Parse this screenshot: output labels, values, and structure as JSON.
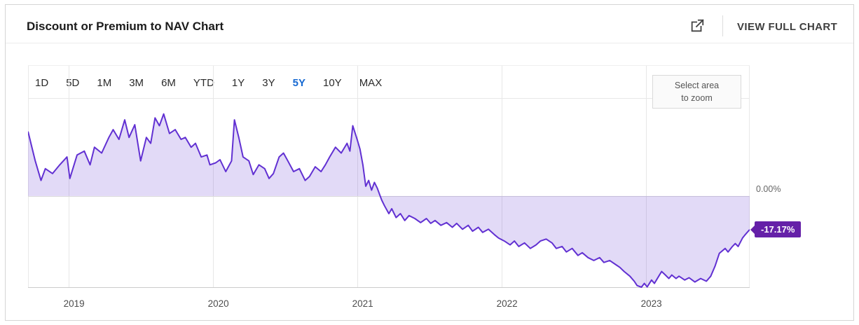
{
  "header": {
    "title": "Discount or Premium to NAV Chart",
    "view_full_chart_label": "VIEW FULL CHART",
    "external_link_icon": "open-in-new-icon"
  },
  "range_selector": {
    "options": [
      "1D",
      "5D",
      "1M",
      "3M",
      "6M",
      "YTD",
      "1Y",
      "3Y",
      "5Y",
      "10Y",
      "MAX"
    ],
    "selected": "5Y",
    "selected_color": "#1669d2"
  },
  "zoom_hint": {
    "line1": "Select area",
    "line2": "to zoom"
  },
  "chart_data": {
    "type": "area",
    "title": "Discount or Premium to NAV",
    "series_name": "Discount/Premium to NAV (%)",
    "x_unit": "decimal_year",
    "x_range": [
      2018.72,
      2023.72
    ],
    "x_ticks": [
      2019,
      2020,
      2021,
      2022,
      2023
    ],
    "ylim": [
      -47,
      67
    ],
    "baseline": 0,
    "y_zero_label": "0.00%",
    "last_value": -17.17,
    "last_value_label": "-17.17%",
    "grid": "vertical-years",
    "legend": "none",
    "line_color": "#6130d2",
    "fill_color": "rgba(97,48,210,0.18)",
    "badge_color": "#6520a8",
    "points": [
      [
        2018.72,
        33
      ],
      [
        2018.77,
        18
      ],
      [
        2018.81,
        8
      ],
      [
        2018.84,
        14
      ],
      [
        2018.89,
        11.5
      ],
      [
        2018.94,
        16
      ],
      [
        2018.99,
        20
      ],
      [
        2019.01,
        9
      ],
      [
        2019.06,
        21
      ],
      [
        2019.11,
        23
      ],
      [
        2019.15,
        16
      ],
      [
        2019.18,
        25
      ],
      [
        2019.23,
        22
      ],
      [
        2019.28,
        30
      ],
      [
        2019.31,
        34
      ],
      [
        2019.35,
        29
      ],
      [
        2019.39,
        39
      ],
      [
        2019.42,
        30
      ],
      [
        2019.46,
        36.5
      ],
      [
        2019.5,
        18
      ],
      [
        2019.54,
        30
      ],
      [
        2019.57,
        27
      ],
      [
        2019.6,
        40
      ],
      [
        2019.63,
        36
      ],
      [
        2019.66,
        42
      ],
      [
        2019.7,
        32
      ],
      [
        2019.74,
        34
      ],
      [
        2019.78,
        29
      ],
      [
        2019.81,
        30
      ],
      [
        2019.85,
        25
      ],
      [
        2019.88,
        27
      ],
      [
        2019.92,
        20
      ],
      [
        2019.96,
        21
      ],
      [
        2019.98,
        16
      ],
      [
        2020.02,
        17
      ],
      [
        2020.05,
        18.6
      ],
      [
        2020.09,
        12.5
      ],
      [
        2020.13,
        18
      ],
      [
        2020.15,
        39
      ],
      [
        2020.18,
        30
      ],
      [
        2020.21,
        20
      ],
      [
        2020.25,
        18
      ],
      [
        2020.28,
        11
      ],
      [
        2020.32,
        16
      ],
      [
        2020.36,
        14
      ],
      [
        2020.39,
        9
      ],
      [
        2020.42,
        11.5
      ],
      [
        2020.46,
        20
      ],
      [
        2020.49,
        22
      ],
      [
        2020.52,
        18
      ],
      [
        2020.56,
        12.5
      ],
      [
        2020.6,
        14
      ],
      [
        2020.64,
        8
      ],
      [
        2020.67,
        10
      ],
      [
        2020.71,
        15
      ],
      [
        2020.75,
        12.5
      ],
      [
        2020.78,
        16
      ],
      [
        2020.81,
        20
      ],
      [
        2020.85,
        25
      ],
      [
        2020.89,
        22
      ],
      [
        2020.93,
        27
      ],
      [
        2020.95,
        23
      ],
      [
        2020.97,
        36
      ],
      [
        2021.0,
        29
      ],
      [
        2021.02,
        24
      ],
      [
        2021.04,
        16
      ],
      [
        2021.06,
        5
      ],
      [
        2021.08,
        8
      ],
      [
        2021.1,
        3
      ],
      [
        2021.12,
        7
      ],
      [
        2021.14,
        4
      ],
      [
        2021.17,
        -2
      ],
      [
        2021.19,
        -5
      ],
      [
        2021.22,
        -9
      ],
      [
        2021.24,
        -6.5
      ],
      [
        2021.27,
        -11
      ],
      [
        2021.3,
        -9
      ],
      [
        2021.33,
        -12.5
      ],
      [
        2021.36,
        -10
      ],
      [
        2021.4,
        -11.5
      ],
      [
        2021.44,
        -13.6
      ],
      [
        2021.48,
        -11.5
      ],
      [
        2021.51,
        -14
      ],
      [
        2021.54,
        -12.5
      ],
      [
        2021.58,
        -15
      ],
      [
        2021.62,
        -13.6
      ],
      [
        2021.66,
        -16
      ],
      [
        2021.69,
        -14
      ],
      [
        2021.73,
        -17
      ],
      [
        2021.77,
        -15
      ],
      [
        2021.8,
        -18
      ],
      [
        2021.84,
        -16
      ],
      [
        2021.87,
        -18.6
      ],
      [
        2021.91,
        -17
      ],
      [
        2021.95,
        -19.7
      ],
      [
        2021.98,
        -21.5
      ],
      [
        2022.02,
        -23
      ],
      [
        2022.06,
        -25
      ],
      [
        2022.09,
        -23
      ],
      [
        2022.12,
        -25.8
      ],
      [
        2022.16,
        -24
      ],
      [
        2022.2,
        -26.8
      ],
      [
        2022.24,
        -25
      ],
      [
        2022.27,
        -23
      ],
      [
        2022.31,
        -22
      ],
      [
        2022.35,
        -24
      ],
      [
        2022.38,
        -26.8
      ],
      [
        2022.42,
        -25.8
      ],
      [
        2022.45,
        -28.6
      ],
      [
        2022.49,
        -26.8
      ],
      [
        2022.53,
        -30.4
      ],
      [
        2022.56,
        -29
      ],
      [
        2022.6,
        -31.5
      ],
      [
        2022.64,
        -33
      ],
      [
        2022.68,
        -31.5
      ],
      [
        2022.71,
        -34
      ],
      [
        2022.75,
        -33
      ],
      [
        2022.79,
        -35
      ],
      [
        2022.82,
        -36.5
      ],
      [
        2022.85,
        -38.6
      ],
      [
        2022.89,
        -41
      ],
      [
        2022.92,
        -43.6
      ],
      [
        2022.94,
        -45.8
      ],
      [
        2022.97,
        -47.2
      ],
      [
        2022.99,
        -44.7
      ],
      [
        2023.01,
        -46.5
      ],
      [
        2023.04,
        -43
      ],
      [
        2023.06,
        -44.7
      ],
      [
        2023.09,
        -41
      ],
      [
        2023.11,
        -38.6
      ],
      [
        2023.13,
        -40
      ],
      [
        2023.16,
        -42.2
      ],
      [
        2023.18,
        -40.4
      ],
      [
        2023.21,
        -42.2
      ],
      [
        2023.23,
        -41
      ],
      [
        2023.27,
        -43
      ],
      [
        2023.3,
        -41.8
      ],
      [
        2023.34,
        -44
      ],
      [
        2023.38,
        -42.2
      ],
      [
        2023.42,
        -43.6
      ],
      [
        2023.45,
        -41
      ],
      [
        2023.48,
        -35.8
      ],
      [
        2023.51,
        -29.3
      ],
      [
        2023.55,
        -26.8
      ],
      [
        2023.57,
        -28.6
      ],
      [
        2023.6,
        -25.8
      ],
      [
        2023.62,
        -24.3
      ],
      [
        2023.64,
        -25.8
      ],
      [
        2023.67,
        -21.5
      ],
      [
        2023.69,
        -19.7
      ],
      [
        2023.72,
        -17.17
      ]
    ]
  }
}
